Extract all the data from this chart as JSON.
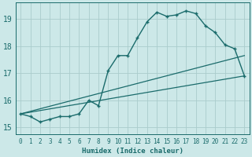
{
  "xlabel": "Humidex (Indice chaleur)",
  "bg_color": "#cce8e8",
  "grid_color": "#aacccc",
  "line_color": "#1a6b6b",
  "xlim": [
    -0.5,
    23.5
  ],
  "ylim": [
    14.75,
    19.6
  ],
  "yticks": [
    15,
    16,
    17,
    18,
    19
  ],
  "xticks": [
    0,
    1,
    2,
    3,
    4,
    5,
    6,
    7,
    8,
    9,
    10,
    11,
    12,
    13,
    14,
    15,
    16,
    17,
    18,
    19,
    20,
    21,
    22,
    23
  ],
  "line1_x": [
    0,
    1,
    2,
    3,
    4,
    5,
    6,
    7,
    8,
    9,
    10,
    11,
    12,
    13,
    14,
    15,
    16,
    17,
    18,
    19,
    20,
    21,
    22,
    23
  ],
  "line1_y": [
    15.5,
    15.4,
    15.2,
    15.3,
    15.4,
    15.4,
    15.5,
    16.0,
    15.8,
    17.1,
    17.65,
    17.65,
    18.3,
    18.9,
    19.25,
    19.1,
    19.15,
    19.3,
    19.2,
    18.75,
    18.5,
    18.05,
    17.9,
    16.9
  ],
  "line2_x": [
    0,
    23
  ],
  "line2_y": [
    15.5,
    16.9
  ],
  "line3_x": [
    0,
    23
  ],
  "line3_y": [
    15.5,
    17.65
  ],
  "xlabel_fontsize": 6.5,
  "ytick_fontsize": 7,
  "xtick_fontsize": 5.5
}
